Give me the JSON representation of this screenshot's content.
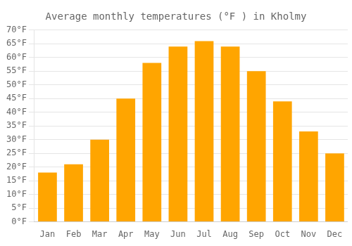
{
  "chart_data": {
    "type": "bar",
    "title": "Average monthly temperatures (°F ) in Kholmy",
    "categories": [
      "Jan",
      "Feb",
      "Mar",
      "Apr",
      "May",
      "Jun",
      "Jul",
      "Aug",
      "Sep",
      "Oct",
      "Nov",
      "Dec"
    ],
    "values": [
      18,
      21,
      30,
      45,
      58,
      64,
      66,
      64,
      55,
      44,
      33,
      25
    ],
    "color": "#FFA500",
    "ylim": [
      0,
      70
    ],
    "yticks": [
      {
        "value": 0,
        "label": "0°F"
      },
      {
        "value": 5,
        "label": "5°F"
      },
      {
        "value": 10,
        "label": "10°F"
      },
      {
        "value": 15,
        "label": "15°F"
      },
      {
        "value": 20,
        "label": "20°F"
      },
      {
        "value": 25,
        "label": "25°F"
      },
      {
        "value": 30,
        "label": "30°F"
      },
      {
        "value": 35,
        "label": "35°F"
      },
      {
        "value": 40,
        "label": "40°F"
      },
      {
        "value": 45,
        "label": "45°F"
      },
      {
        "value": 50,
        "label": "50°F"
      },
      {
        "value": 55,
        "label": "55°F"
      },
      {
        "value": 60,
        "label": "60°F"
      },
      {
        "value": 65,
        "label": "65°F"
      },
      {
        "value": 70,
        "label": "70°F"
      }
    ],
    "grid": true
  }
}
